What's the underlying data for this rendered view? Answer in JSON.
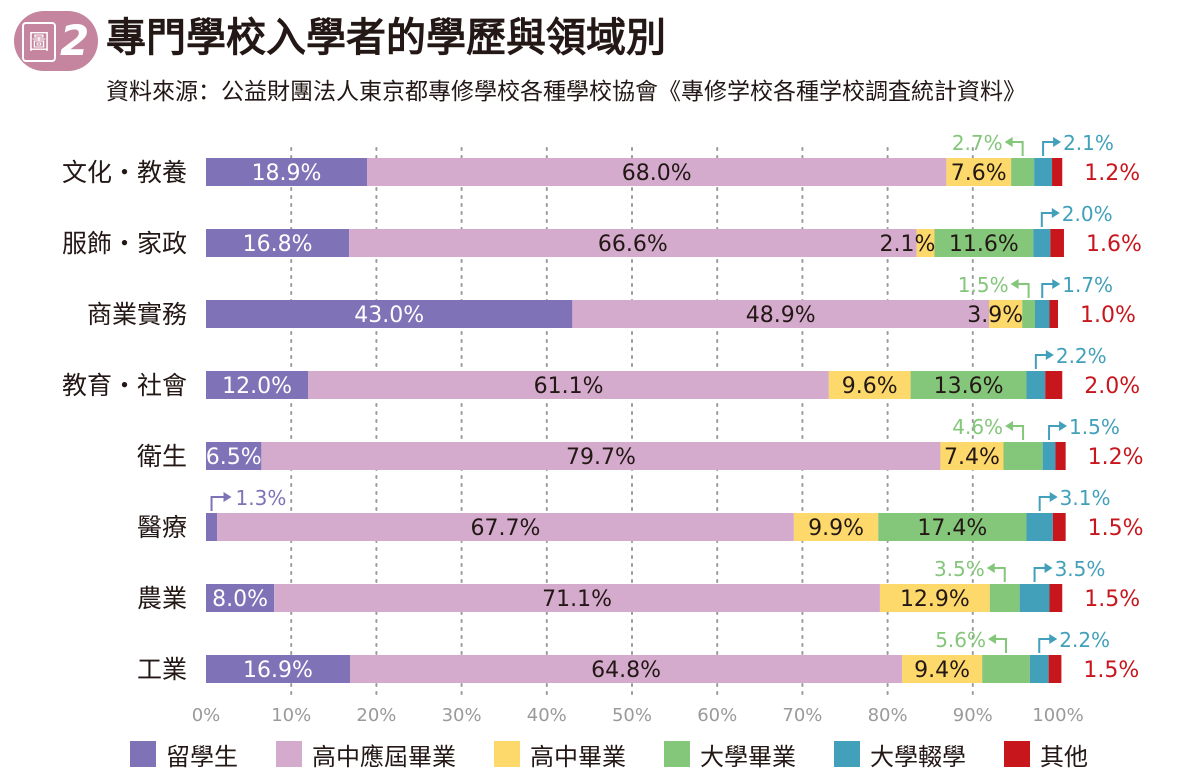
{
  "badge": {
    "label": "圖",
    "number": "2"
  },
  "title": "專門學校入學者的學歷與領域別",
  "source": "資料來源：公益財團法人東京都專修學校各種學校協會《專修学校各種学校調査統計資料》",
  "colors": {
    "series": [
      "#7f72b6",
      "#d4aacd",
      "#fdd86b",
      "#84c67a",
      "#42a0bb",
      "#c8161d"
    ],
    "label_on_bar": [
      "#ffffff",
      "#231815",
      "#231815",
      "#231815",
      "#231815",
      "#c8161d"
    ],
    "callout": [
      "#7f72b6",
      "#231815",
      "#231815",
      "#84c67a",
      "#42a0bb",
      "#c8161d"
    ],
    "grid": "#9a9a9a",
    "tick": "#9a9a9a"
  },
  "chart_data": {
    "type": "bar",
    "orientation": "horizontal",
    "stacked": true,
    "categories": [
      "文化・教養",
      "服飾・家政",
      "商業實務",
      "教育・社會",
      "衛生",
      "醫療",
      "農業",
      "工業"
    ],
    "series": [
      {
        "name": "留學生",
        "values": [
          18.9,
          16.8,
          43.0,
          12.0,
          6.5,
          1.3,
          8.0,
          16.9
        ]
      },
      {
        "name": "高中應屆畢業",
        "values": [
          68.0,
          66.6,
          48.9,
          61.1,
          79.7,
          67.7,
          71.1,
          64.8
        ]
      },
      {
        "name": "高中畢業",
        "values": [
          7.6,
          2.1,
          3.9,
          9.6,
          7.4,
          9.9,
          12.9,
          9.4
        ]
      },
      {
        "name": "大學畢業",
        "values": [
          2.7,
          11.6,
          1.5,
          13.6,
          4.6,
          17.4,
          3.5,
          5.6
        ]
      },
      {
        "name": "大學輟學",
        "values": [
          2.1,
          2.0,
          1.7,
          2.2,
          1.5,
          3.1,
          3.5,
          2.2
        ]
      },
      {
        "name": "其他",
        "values": [
          1.2,
          1.6,
          1.0,
          2.0,
          1.2,
          1.5,
          1.5,
          1.5
        ]
      }
    ],
    "xlim": [
      0,
      100
    ],
    "xticks": [
      "0%",
      "10%",
      "20%",
      "30%",
      "40%",
      "50%",
      "60%",
      "70%",
      "80%",
      "90%",
      "100%"
    ],
    "grid": "vertical dotted",
    "legend": "bottom"
  }
}
